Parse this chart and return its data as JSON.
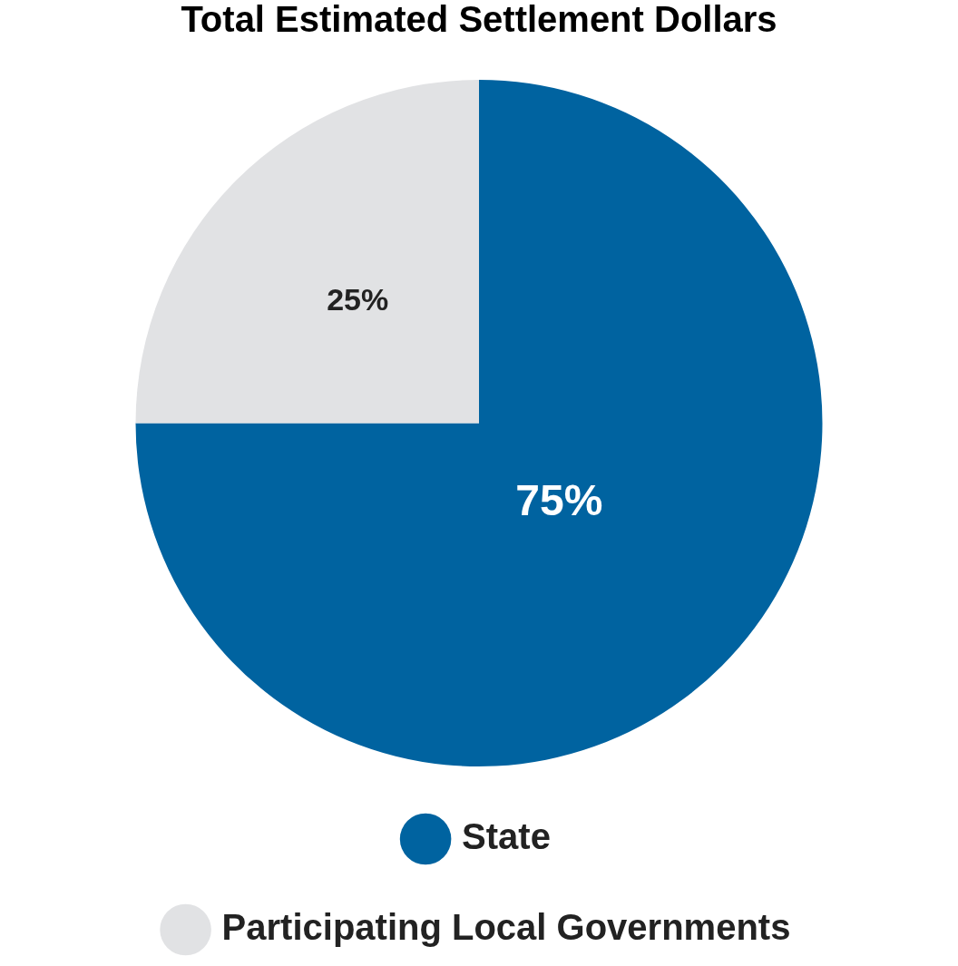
{
  "chart_data": {
    "type": "pie",
    "title": "Total Estimated Settlement Dollars",
    "categories": [
      "State",
      "Participating Local Governments"
    ],
    "values": [
      75,
      25
    ],
    "colors": [
      "#0063a0",
      "#e1e2e4"
    ],
    "value_labels": [
      "75%",
      "25%"
    ],
    "legend": "bottom"
  }
}
